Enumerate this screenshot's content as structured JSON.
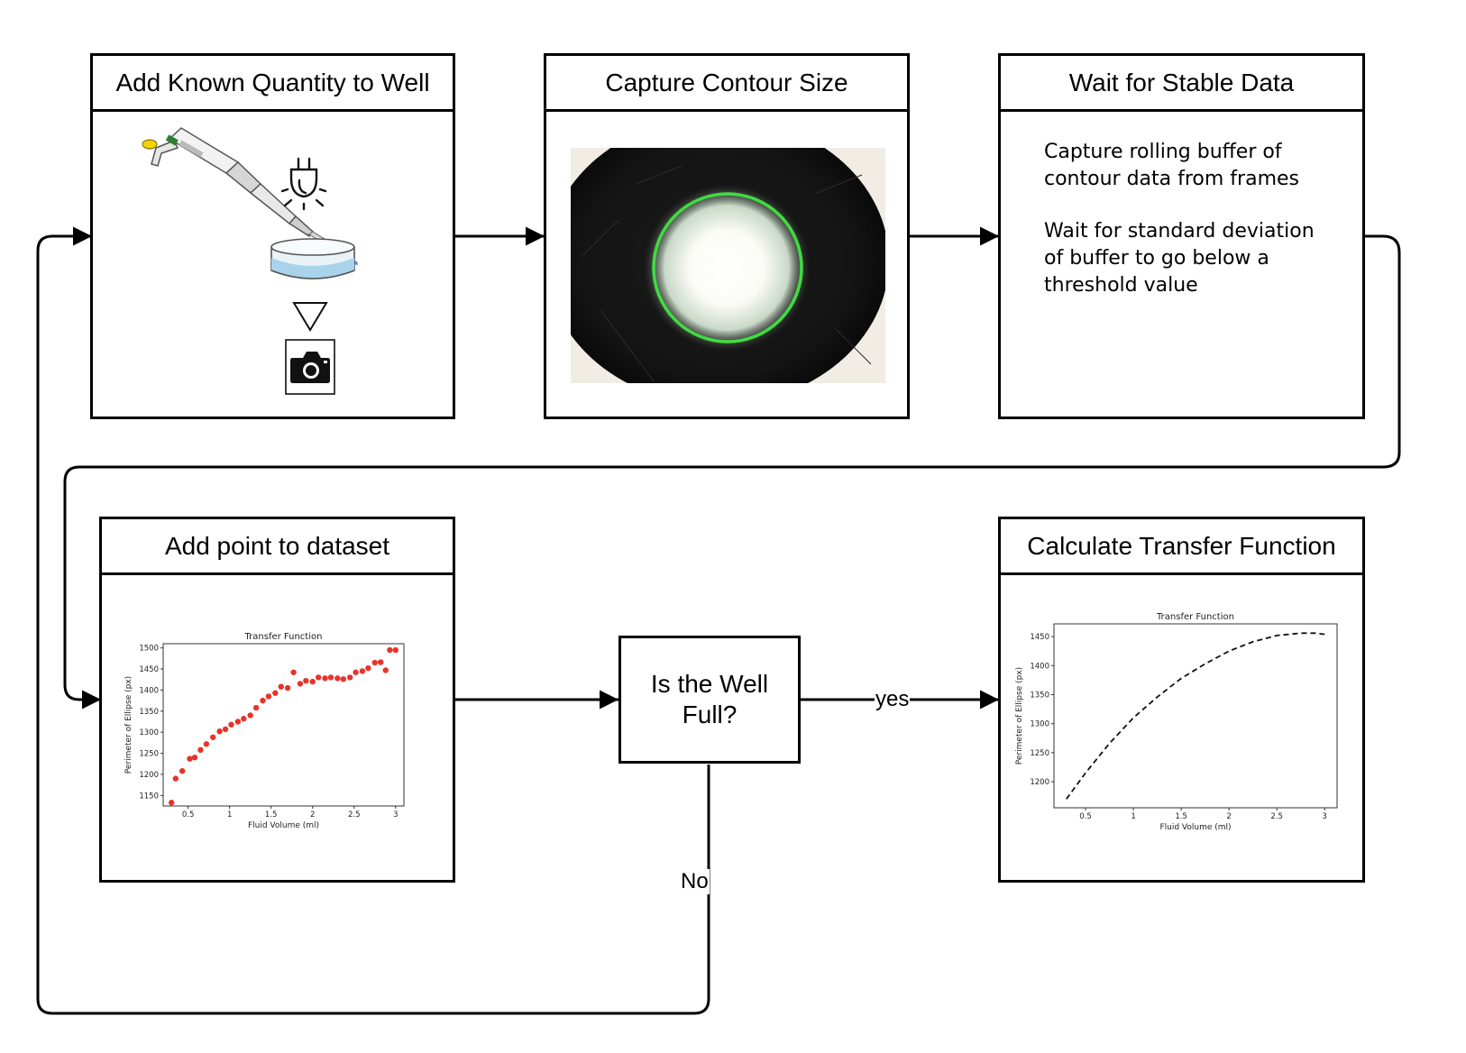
{
  "steps": {
    "add_quantity": {
      "title": "Add Known Quantity to Well"
    },
    "capture_contour": {
      "title": "Capture Contour Size"
    },
    "wait_stable": {
      "title": "Wait for Stable Data",
      "paragraph1": "Capture rolling buffer of contour data from frames",
      "paragraph2": "Wait for standard deviation of buffer to go below a threshold value"
    },
    "add_point": {
      "title": "Add point to dataset"
    },
    "calculate": {
      "title": "Calculate Transfer Function"
    }
  },
  "decision": {
    "line1": "Is the Well",
    "line2": "Full?"
  },
  "edges": {
    "yes_label": "yes",
    "no_label": "No"
  },
  "icons": [
    "pipette-icon",
    "light-bulb-icon",
    "petri-dish-icon",
    "triangle-down-icon",
    "camera-icon"
  ],
  "colors": {
    "scatter_point": "#e8332a",
    "contour_ring": "#3fdc3f",
    "pipette_tip": "#3344dd",
    "liquid": "#a9d3ea"
  },
  "chart_data": [
    {
      "type": "scatter",
      "title": "Transfer Function",
      "xlabel": "Fluid Volume (ml)",
      "ylabel": "Perimeter of Ellipse (px)",
      "xlim": [
        0.2,
        3.1
      ],
      "ylim": [
        1125,
        1510
      ],
      "xticks": [
        0.5,
        1.0,
        1.5,
        2.0,
        2.5,
        3.0
      ],
      "yticks": [
        1150,
        1200,
        1250,
        1300,
        1350,
        1400,
        1450,
        1500
      ],
      "x": [
        0.3,
        0.35,
        0.43,
        0.52,
        0.58,
        0.65,
        0.72,
        0.8,
        0.88,
        0.95,
        1.02,
        1.1,
        1.17,
        1.25,
        1.32,
        1.4,
        1.47,
        1.55,
        1.62,
        1.7,
        1.77,
        1.85,
        1.92,
        2.0,
        2.07,
        2.15,
        2.22,
        2.3,
        2.37,
        2.45,
        2.52,
        2.6,
        2.67,
        2.75,
        2.82,
        2.88,
        2.93,
        3.0
      ],
      "y": [
        1133,
        1190,
        1208,
        1237,
        1240,
        1258,
        1272,
        1288,
        1302,
        1307,
        1318,
        1325,
        1332,
        1340,
        1358,
        1375,
        1385,
        1393,
        1408,
        1405,
        1442,
        1415,
        1422,
        1420,
        1430,
        1428,
        1430,
        1428,
        1426,
        1430,
        1442,
        1445,
        1452,
        1465,
        1466,
        1447,
        1495,
        1495
      ]
    },
    {
      "type": "line",
      "title": "Transfer Function",
      "xlabel": "Fluid Volume (ml)",
      "ylabel": "Perimeter of Ellipse (px)",
      "xlim": [
        0.17,
        3.13
      ],
      "ylim": [
        1155,
        1472
      ],
      "xticks": [
        0.5,
        1.0,
        1.5,
        2.0,
        2.5,
        3.0
      ],
      "yticks": [
        1200,
        1250,
        1300,
        1350,
        1400,
        1450
      ],
      "line_style": "dashed",
      "series": [
        {
          "x": [
            0.3,
            0.5,
            0.75,
            1.0,
            1.25,
            1.5,
            1.75,
            2.0,
            2.25,
            2.5,
            2.75,
            2.9,
            3.0
          ],
          "y": [
            1170,
            1215,
            1266,
            1310,
            1346,
            1378,
            1403,
            1425,
            1441,
            1452,
            1456,
            1456,
            1454
          ]
        }
      ]
    }
  ]
}
